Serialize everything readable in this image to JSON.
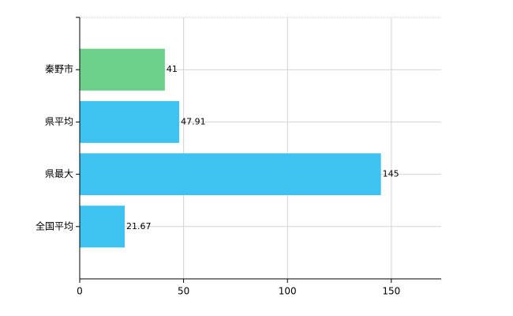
{
  "chart_data": {
    "type": "barh",
    "categories": [
      "秦野市",
      "県平均",
      "県最大",
      "全国平均"
    ],
    "values": [
      41,
      47.91,
      145,
      21.67
    ],
    "colors": [
      "#6dd08a",
      "#3ec2f2",
      "#3ec2f2",
      "#3ec2f2"
    ],
    "xlim": [
      0,
      174
    ],
    "xticks": [
      0,
      50,
      100,
      150
    ],
    "grid": true
  }
}
